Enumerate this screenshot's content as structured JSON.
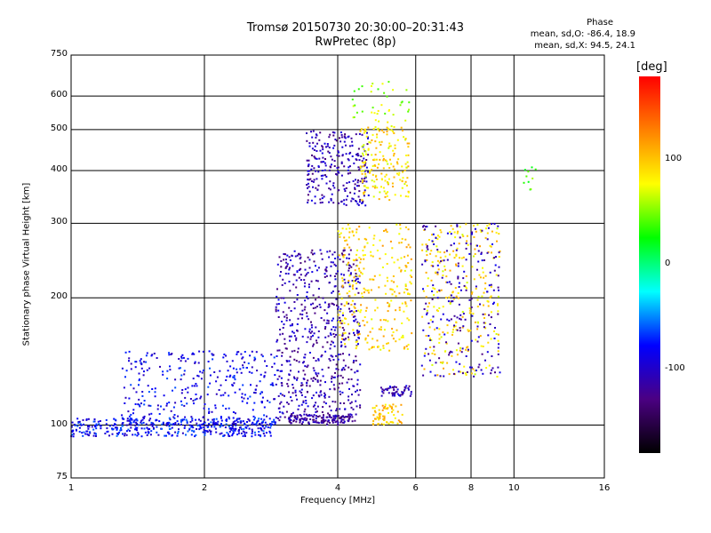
{
  "header": {
    "title_line1": "Tromsø 20150730 20:30:00–20:31:43",
    "title_line2": "RwPretec (8p)",
    "phase_heading": "Phase",
    "phase_o": "mean, sd,O:  -86.4, 18.9",
    "phase_x": "mean, sd,X:  94.5, 24.1"
  },
  "colorbar": {
    "unit_label": "[deg]",
    "ticks": [
      "100",
      "0",
      "-100"
    ],
    "tick_values": [
      100,
      0,
      -100
    ],
    "range": [
      -180,
      180
    ],
    "colors": [
      "#000000",
      "#4b0082",
      "#0000ff",
      "#00ffff",
      "#00ff00",
      "#ffff00",
      "#ff8000",
      "#ff0000"
    ]
  },
  "chart_data": {
    "type": "scatter",
    "xlabel": "Frequency [MHz]",
    "ylabel": "Stationary phase Virtual Height [km]",
    "x_scale": "log",
    "y_scale": "log",
    "xlim": [
      1,
      16
    ],
    "ylim": [
      75,
      750
    ],
    "x_ticks": [
      1,
      2,
      4,
      6,
      8,
      10,
      16
    ],
    "x_tick_labels": [
      "1",
      "2",
      "4",
      "6",
      "8",
      "10",
      "16"
    ],
    "y_ticks": [
      75,
      100,
      200,
      300,
      400,
      500,
      600,
      750
    ],
    "y_tick_labels": [
      "75",
      "100",
      "200",
      "300",
      "400",
      "500",
      "600",
      "750"
    ],
    "grid": true,
    "point_clusters": [
      {
        "x": [
          1.0,
          2.9
        ],
        "y": [
          94,
          104
        ],
        "phase": -80,
        "count": 420
      },
      {
        "x": [
          1.3,
          3.0
        ],
        "y": [
          100,
          150
        ],
        "phase": -85,
        "count": 340
      },
      {
        "x": [
          2.9,
          4.5
        ],
        "y": [
          100,
          260
        ],
        "phase": -110,
        "count": 620
      },
      {
        "x": [
          3.1,
          4.3
        ],
        "y": [
          101,
          106
        ],
        "phase": -115,
        "count": 120
      },
      {
        "x": [
          3.4,
          4.7
        ],
        "y": [
          330,
          500
        ],
        "phase": -110,
        "count": 260
      },
      {
        "x": [
          4.5,
          5.8
        ],
        "y": [
          340,
          510
        ],
        "phase": 90,
        "count": 180
      },
      {
        "x": [
          4.0,
          5.9
        ],
        "y": [
          150,
          300
        ],
        "phase": 95,
        "count": 280
      },
      {
        "x": [
          4.8,
          5.6
        ],
        "y": [
          100,
          112
        ],
        "phase": 100,
        "count": 70
      },
      {
        "x": [
          5.0,
          5.9
        ],
        "y": [
          117,
          124
        ],
        "phase": -110,
        "count": 50
      },
      {
        "x": [
          6.2,
          9.3
        ],
        "y": [
          130,
          300
        ],
        "phase": 90,
        "count": 260
      },
      {
        "x": [
          6.2,
          9.3
        ],
        "y": [
          130,
          300
        ],
        "phase": -105,
        "count": 200
      },
      {
        "x": [
          4.3,
          5.9
        ],
        "y": [
          520,
          650
        ],
        "phase": 60,
        "count": 40
      },
      {
        "x": [
          10.5,
          11.2
        ],
        "y": [
          360,
          420
        ],
        "phase": 40,
        "count": 10
      }
    ]
  }
}
